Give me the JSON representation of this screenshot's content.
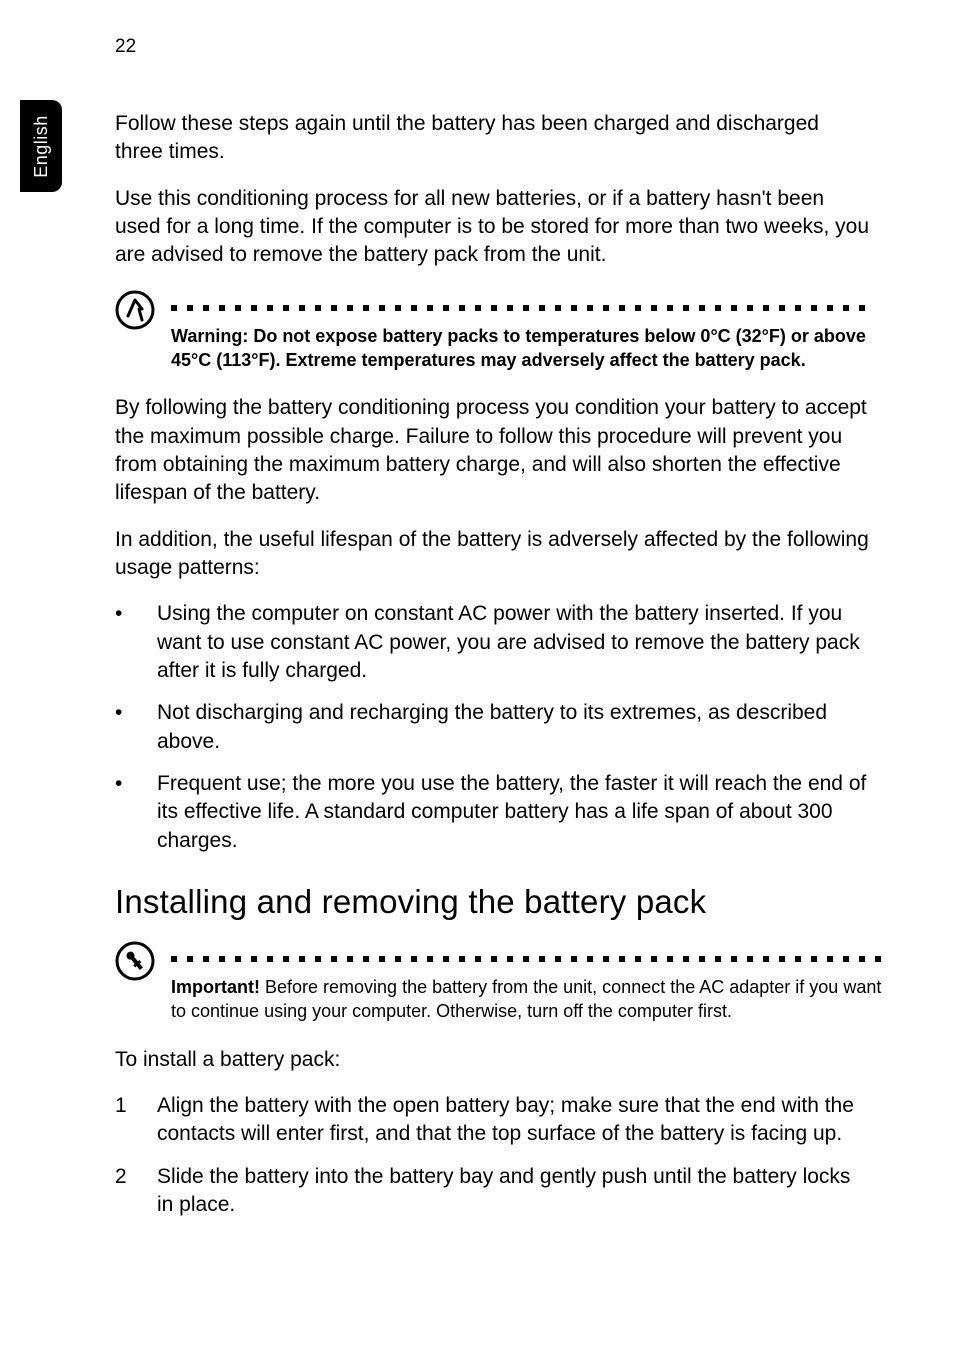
{
  "page_number": "22",
  "side_tab": "English",
  "para_intro_1": "Follow these steps again until the battery has been charged and discharged three times.",
  "para_intro_2": "Use this conditioning process for all new batteries, or if a battery hasn't been used for a long time. If the computer is to be stored for more than two weeks, you are advised to remove the battery pack from the unit.",
  "warning": {
    "prefix": "Warning: Do not expose battery packs to temperatures below 0°C (32°F) or above 45°C (113°F). Extreme temperatures may adversely affect the battery pack."
  },
  "para_after_warning_1": "By following the battery conditioning process you condition your battery to accept the maximum possible charge. Failure to follow this procedure will prevent you from obtaining the maximum battery charge, and will also shorten the effective lifespan of the battery.",
  "para_after_warning_2": "In addition, the useful lifespan of the battery is adversely affected by the following usage patterns:",
  "bullets": [
    "Using the computer on constant AC power with the battery inserted. If you want to use constant AC power, you are advised to remove the battery pack after it is fully charged.",
    "Not discharging and recharging the battery to its extremes, as described above.",
    "Frequent use; the more you use the battery, the faster it will reach the end of its effective life. A standard computer battery has a life span of about 300 charges."
  ],
  "heading": "Installing and removing the battery pack",
  "important": {
    "label": "Important!",
    "text": " Before removing the battery from the unit, connect the AC adapter if you want to continue using your computer. Otherwise, turn off the computer first."
  },
  "install_intro": "To install a battery pack:",
  "steps": [
    {
      "n": "1",
      "text": "Align the battery with the open battery bay; make sure that the end with the contacts will enter first, and that the top surface of the battery is facing up."
    },
    {
      "n": "2",
      "text": "Slide the battery into the battery bay and gently push until the battery locks in place."
    }
  ],
  "colors": {
    "text": "#000000",
    "background": "#ffffff",
    "tab_bg": "#000000",
    "tab_fg": "#ffffff"
  },
  "dot_count_warning": 44,
  "dot_count_important": 45
}
